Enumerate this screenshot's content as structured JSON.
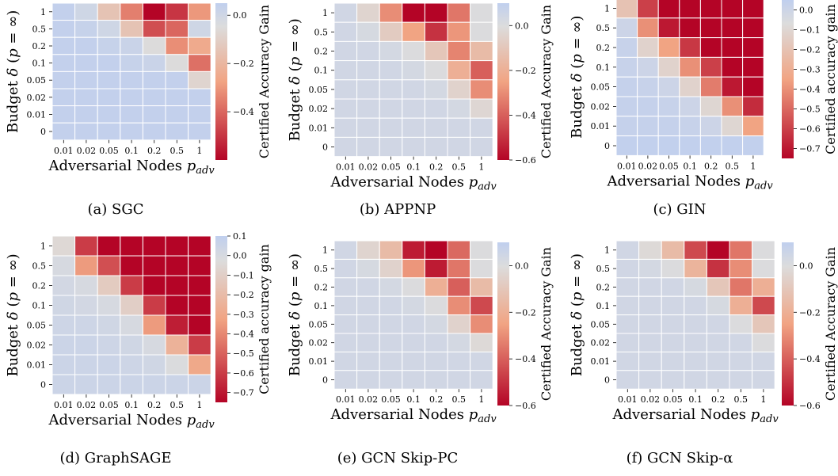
{
  "palette": {
    "max_color": "#c0cfee",
    "mid_color": "#dcdcdc",
    "low_mid_color": "#f1a483",
    "min_color": "#b40426",
    "grid_line_color": "#ffffff"
  },
  "chart_data": [
    {
      "type": "heatmap",
      "caption": "(a) SGC",
      "xlabel": "Adversarial Nodes p_adv",
      "ylabel": "Budget δ (p = ∞)",
      "x_categories": [
        "0.01",
        "0.02",
        "0.05",
        "0.1",
        "0.2",
        "0.5",
        "1"
      ],
      "y_categories": [
        "1",
        "0.5",
        "0.2",
        "0.1",
        "0.05",
        "0.02",
        "0.01",
        "0"
      ],
      "colorbar_label": "Certified Accuracy Gain",
      "colorbar_ticks": [
        0.0,
        -0.2,
        -0.4
      ],
      "colorbar_tick_labels": [
        "0.0",
        "−0.2",
        "−0.4"
      ],
      "vmin": -0.6,
      "vmax": 0.05,
      "values": [
        [
          0.04,
          0.0,
          -0.15,
          -0.35,
          -0.6,
          -0.5,
          -0.3
        ],
        [
          0.04,
          0.03,
          0.0,
          -0.15,
          -0.45,
          -0.4,
          0.0
        ],
        [
          0.04,
          0.04,
          0.03,
          0.02,
          -0.05,
          -0.32,
          -0.25
        ],
        [
          0.04,
          0.04,
          0.04,
          0.03,
          0.02,
          -0.05,
          -0.38
        ],
        [
          0.04,
          0.04,
          0.04,
          0.04,
          0.04,
          0.04,
          -0.08
        ],
        [
          0.04,
          0.04,
          0.04,
          0.04,
          0.04,
          0.04,
          0.04
        ],
        [
          0.04,
          0.04,
          0.04,
          0.04,
          0.04,
          0.04,
          0.04
        ],
        [
          0.04,
          0.04,
          0.04,
          0.04,
          0.04,
          0.04,
          0.04
        ]
      ]
    },
    {
      "type": "heatmap",
      "caption": "(b) APPNP",
      "xlabel": "Adversarial Nodes p_adv",
      "ylabel": "Budget δ (p = ∞)",
      "x_categories": [
        "0.01",
        "0.02",
        "0.05",
        "0.1",
        "0.2",
        "0.5",
        "1"
      ],
      "y_categories": [
        "1",
        "0.5",
        "0.2",
        "0.1",
        "0.05",
        "0.02",
        "0.01",
        "0"
      ],
      "colorbar_label": "Certified Accuracy Gain",
      "colorbar_ticks": [
        0.0,
        -0.2,
        -0.4,
        -0.6
      ],
      "colorbar_tick_labels": [
        "0.0",
        "−0.2",
        "−0.4",
        "−0.6"
      ],
      "vmin": -0.6,
      "vmax": 0.1,
      "values": [
        [
          0.04,
          -0.04,
          -0.3,
          -0.6,
          -0.6,
          -0.35,
          0.0
        ],
        [
          0.04,
          0.02,
          -0.08,
          -0.25,
          -0.5,
          -0.28,
          0.0
        ],
        [
          0.04,
          0.04,
          0.03,
          0.0,
          -0.1,
          -0.32,
          -0.15
        ],
        [
          0.04,
          0.04,
          0.04,
          0.03,
          0.0,
          -0.2,
          -0.4
        ],
        [
          0.04,
          0.04,
          0.04,
          0.04,
          0.03,
          -0.05,
          -0.3
        ],
        [
          0.04,
          0.04,
          0.04,
          0.04,
          0.04,
          0.03,
          -0.03
        ],
        [
          0.04,
          0.04,
          0.04,
          0.04,
          0.04,
          0.04,
          0.04
        ],
        [
          0.04,
          0.04,
          0.04,
          0.04,
          0.04,
          0.04,
          0.04
        ]
      ]
    },
    {
      "type": "heatmap",
      "caption": "(c) GIN",
      "xlabel": "Adversarial Nodes p_adv",
      "ylabel": "Budget δ (p = ∞)",
      "x_categories": [
        "0.01",
        "0.02",
        "0.05",
        "0.1",
        "0.2",
        "0.5",
        "1"
      ],
      "y_categories": [
        "1",
        "0.5",
        "0.2",
        "0.1",
        "0.05",
        "0.02",
        "0.01",
        "0"
      ],
      "colorbar_label": "Certified accuracy gain",
      "colorbar_ticks": [
        0.0,
        -0.1,
        -0.2,
        -0.3,
        -0.4,
        -0.5,
        -0.6,
        -0.7
      ],
      "colorbar_tick_labels": [
        "0.0",
        "−0.1",
        "−0.2",
        "−0.3",
        "−0.4",
        "−0.5",
        "−0.6",
        "−0.7"
      ],
      "vmin": -0.75,
      "vmax": 0.05,
      "values": [
        [
          -0.2,
          -0.6,
          -0.75,
          -0.75,
          -0.75,
          -0.75,
          -0.75
        ],
        [
          0.0,
          -0.4,
          -0.7,
          -0.75,
          -0.75,
          -0.75,
          -0.75
        ],
        [
          0.02,
          -0.12,
          -0.35,
          -0.62,
          -0.75,
          -0.75,
          -0.75
        ],
        [
          0.02,
          0.0,
          -0.12,
          -0.4,
          -0.6,
          -0.75,
          -0.75
        ],
        [
          0.03,
          0.02,
          0.0,
          -0.12,
          -0.45,
          -0.7,
          -0.75
        ],
        [
          0.03,
          0.03,
          0.02,
          0.0,
          -0.1,
          -0.4,
          -0.65
        ],
        [
          0.03,
          0.03,
          0.03,
          0.02,
          0.0,
          -0.1,
          -0.35
        ],
        [
          0.04,
          0.04,
          0.04,
          0.04,
          0.04,
          0.04,
          0.04
        ]
      ]
    },
    {
      "type": "heatmap",
      "caption": "(d) GraphSAGE",
      "xlabel": "Adversarial Nodes p_adv",
      "ylabel": "Budget δ (p = ∞)",
      "x_categories": [
        "0.01",
        "0.02",
        "0.05",
        "0.1",
        "0.2",
        "0.5",
        "1"
      ],
      "y_categories": [
        "1",
        "0.5",
        "0.2",
        "0.1",
        "0.05",
        "0.02",
        "0.01",
        "0"
      ],
      "colorbar_label": "Certified accuracy gain",
      "colorbar_ticks": [
        0.1,
        0.0,
        -0.1,
        -0.2,
        -0.3,
        -0.4,
        -0.5,
        -0.6,
        -0.7
      ],
      "colorbar_tick_labels": [
        "0.1",
        "0.0",
        "−0.1",
        "−0.2",
        "−0.3",
        "−0.4",
        "−0.5",
        "−0.6",
        "−0.7"
      ],
      "vmin": -0.75,
      "vmax": 0.1,
      "values": [
        [
          -0.05,
          -0.6,
          -0.75,
          -0.75,
          -0.75,
          -0.75,
          -0.75
        ],
        [
          0.0,
          -0.35,
          -0.55,
          -0.75,
          -0.75,
          -0.75,
          -0.75
        ],
        [
          0.02,
          0.0,
          -0.12,
          -0.6,
          -0.75,
          -0.75,
          -0.75
        ],
        [
          0.03,
          0.02,
          0.0,
          -0.1,
          -0.6,
          -0.75,
          -0.75
        ],
        [
          0.04,
          0.04,
          0.03,
          0.0,
          -0.35,
          -0.68,
          -0.75
        ],
        [
          0.05,
          0.05,
          0.04,
          0.03,
          0.0,
          -0.25,
          -0.6
        ],
        [
          0.05,
          0.05,
          0.05,
          0.04,
          0.03,
          -0.02,
          -0.3
        ],
        [
          0.05,
          0.05,
          0.05,
          0.05,
          0.05,
          0.05,
          0.05
        ]
      ]
    },
    {
      "type": "heatmap",
      "caption": "(e) GCN Skip-PC",
      "xlabel": "Adversarial Nodes p_adv",
      "ylabel": "Budget δ (p = ∞)",
      "x_categories": [
        "0.01",
        "0.02",
        "0.05",
        "0.1",
        "0.2",
        "0.5",
        "1"
      ],
      "y_categories": [
        "1",
        "0.5",
        "0.2",
        "0.1",
        "0.05",
        "0.02",
        "0.01",
        "0"
      ],
      "colorbar_label": "Certified Accuracy Gain",
      "colorbar_ticks": [
        0.0,
        -0.2,
        -0.4,
        -0.6
      ],
      "colorbar_tick_labels": [
        "0.0",
        "−0.2",
        "−0.4",
        "−0.6"
      ],
      "vmin": -0.6,
      "vmax": 0.1,
      "values": [
        [
          0.04,
          -0.04,
          -0.15,
          -0.55,
          -0.6,
          -0.38,
          0.0
        ],
        [
          0.04,
          0.02,
          -0.05,
          -0.28,
          -0.55,
          -0.35,
          0.0
        ],
        [
          0.04,
          0.04,
          0.03,
          0.0,
          -0.2,
          -0.4,
          -0.15
        ],
        [
          0.04,
          0.04,
          0.04,
          0.03,
          0.0,
          -0.3,
          -0.45
        ],
        [
          0.04,
          0.04,
          0.04,
          0.04,
          0.03,
          -0.05,
          -0.3
        ],
        [
          0.04,
          0.04,
          0.04,
          0.04,
          0.04,
          0.03,
          -0.02
        ],
        [
          0.04,
          0.04,
          0.04,
          0.04,
          0.04,
          0.04,
          0.04
        ],
        [
          0.04,
          0.04,
          0.04,
          0.04,
          0.04,
          0.04,
          0.04
        ]
      ]
    },
    {
      "type": "heatmap",
      "caption": "(f) GCN Skip-α",
      "xlabel": "Adversarial Nodes p_adv",
      "ylabel": "Budget δ (p = ∞)",
      "x_categories": [
        "0.01",
        "0.02",
        "0.05",
        "0.1",
        "0.2",
        "0.5",
        "1"
      ],
      "y_categories": [
        "1",
        "0.5",
        "0.2",
        "0.1",
        "0.05",
        "0.02",
        "0.01",
        "0"
      ],
      "colorbar_label": "Certified Accuracy Gain",
      "colorbar_ticks": [
        0.0,
        -0.2,
        -0.4,
        -0.6
      ],
      "colorbar_tick_labels": [
        "0.0",
        "−0.2",
        "−0.4",
        "−0.6"
      ],
      "vmin": -0.6,
      "vmax": 0.1,
      "values": [
        [
          0.04,
          -0.02,
          -0.15,
          -0.45,
          -0.6,
          -0.35,
          0.0
        ],
        [
          0.04,
          0.03,
          0.0,
          -0.18,
          -0.5,
          -0.3,
          0.0
        ],
        [
          0.04,
          0.04,
          0.04,
          0.02,
          -0.1,
          -0.35,
          -0.2
        ],
        [
          0.04,
          0.04,
          0.04,
          0.04,
          0.02,
          -0.2,
          -0.45
        ],
        [
          0.04,
          0.04,
          0.04,
          0.04,
          0.04,
          0.0,
          -0.1
        ],
        [
          0.04,
          0.04,
          0.04,
          0.04,
          0.04,
          0.04,
          0.0
        ],
        [
          0.04,
          0.04,
          0.04,
          0.04,
          0.04,
          0.04,
          0.04
        ],
        [
          0.04,
          0.04,
          0.04,
          0.04,
          0.04,
          0.04,
          0.04
        ]
      ]
    }
  ]
}
